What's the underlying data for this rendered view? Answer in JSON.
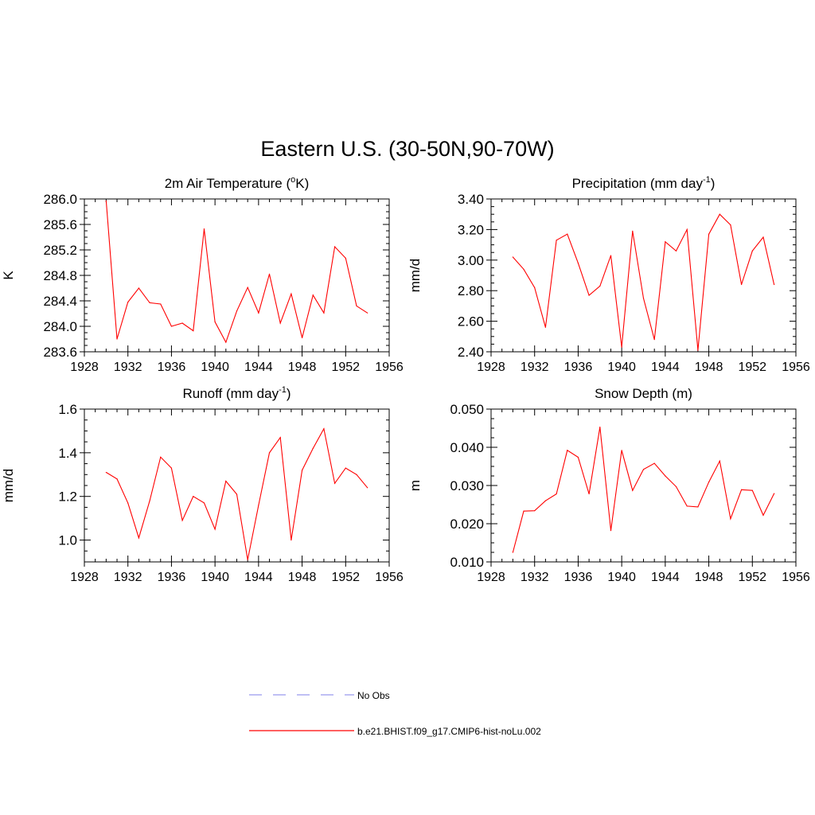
{
  "figure": {
    "title": "Eastern U.S. (30-50N,90-70W)"
  },
  "legend": {
    "entries": [
      {
        "label": "No Obs",
        "color": "#9999ee",
        "style": "dashed"
      },
      {
        "label": "b.e21.BHIST.f09_g17.CMIP6-hist-noLu.002",
        "color": "#ff0000",
        "style": "solid"
      }
    ]
  },
  "chart_data": [
    {
      "type": "line",
      "title": "2m Air Temperature (",
      "title_sup": "o",
      "title_after": "K)",
      "xlabel": "",
      "ylabel": "K",
      "xlim": [
        1928,
        1956
      ],
      "ylim": [
        283.6,
        286.0
      ],
      "xticks": [
        "1928",
        "1932",
        "1936",
        "1940",
        "1944",
        "1948",
        "1952",
        "1956"
      ],
      "yticks": [
        "283.6",
        "284.0",
        "284.4",
        "284.8",
        "285.2",
        "285.6",
        "286.0"
      ],
      "series": [
        {
          "color": "#ff0000",
          "x": [
            1930,
            1931,
            1932,
            1933,
            1934,
            1935,
            1936,
            1937,
            1938,
            1939,
            1940,
            1941,
            1942,
            1943,
            1944,
            1945,
            1946,
            1947,
            1948,
            1949,
            1950,
            1951,
            1952,
            1953,
            1954
          ],
          "values": [
            285.97,
            283.8,
            284.38,
            284.6,
            284.37,
            284.35,
            284.0,
            284.05,
            283.93,
            285.53,
            284.07,
            283.75,
            284.24,
            284.61,
            284.21,
            284.82,
            284.05,
            284.51,
            283.82,
            284.49,
            284.21,
            285.25,
            285.07,
            284.32,
            284.21
          ]
        }
      ]
    },
    {
      "type": "line",
      "title": "Precipitation (mm day",
      "title_sup": "-1",
      "title_after": ")",
      "xlabel": "",
      "ylabel": "mm/d",
      "xlim": [
        1928,
        1956
      ],
      "ylim": [
        2.4,
        3.4
      ],
      "xticks": [
        "1928",
        "1932",
        "1936",
        "1940",
        "1944",
        "1948",
        "1952",
        "1956"
      ],
      "yticks": [
        "2.40",
        "2.60",
        "2.80",
        "3.00",
        "3.20",
        "3.40"
      ],
      "series": [
        {
          "color": "#ff0000",
          "x": [
            1930,
            1931,
            1932,
            1933,
            1934,
            1935,
            1936,
            1937,
            1938,
            1939,
            1940,
            1941,
            1942,
            1943,
            1944,
            1945,
            1946,
            1947,
            1948,
            1949,
            1950,
            1951,
            1952,
            1953,
            1954
          ],
          "values": [
            3.02,
            2.94,
            2.82,
            2.56,
            3.13,
            3.17,
            2.98,
            2.77,
            2.83,
            3.03,
            2.43,
            3.19,
            2.75,
            2.48,
            3.12,
            3.06,
            3.2,
            2.41,
            3.17,
            3.3,
            3.23,
            2.84,
            3.06,
            3.15,
            2.84
          ]
        }
      ]
    },
    {
      "type": "line",
      "title": "Runoff (mm day",
      "title_sup": "-1",
      "title_after": ")",
      "xlabel": "",
      "ylabel": "mm/d",
      "xlim": [
        1928,
        1956
      ],
      "ylim": [
        0.9,
        1.6
      ],
      "xticks": [
        "1928",
        "1932",
        "1936",
        "1940",
        "1944",
        "1948",
        "1952",
        "1956"
      ],
      "yticks": [
        "1.0",
        "1.2",
        "1.4",
        "1.6"
      ],
      "yticks_at": [
        1.0,
        1.2,
        1.4,
        1.6
      ],
      "series": [
        {
          "color": "#ff0000",
          "x": [
            1930,
            1931,
            1932,
            1933,
            1934,
            1935,
            1936,
            1937,
            1938,
            1939,
            1940,
            1941,
            1942,
            1943,
            1944,
            1945,
            1946,
            1947,
            1948,
            1949,
            1950,
            1951,
            1952,
            1953,
            1954
          ],
          "values": [
            1.31,
            1.28,
            1.17,
            1.01,
            1.18,
            1.38,
            1.33,
            1.09,
            1.2,
            1.17,
            1.05,
            1.27,
            1.21,
            0.91,
            1.16,
            1.4,
            1.47,
            1.0,
            1.32,
            1.42,
            1.51,
            1.26,
            1.33,
            1.3,
            1.24
          ]
        }
      ]
    },
    {
      "type": "line",
      "title": "Snow Depth (m)",
      "title_sup": "",
      "title_after": "",
      "xlabel": "",
      "ylabel": "m",
      "xlim": [
        1928,
        1956
      ],
      "ylim": [
        0.01,
        0.05
      ],
      "xticks": [
        "1928",
        "1932",
        "1936",
        "1940",
        "1944",
        "1948",
        "1952",
        "1956"
      ],
      "yticks": [
        "0.010",
        "0.020",
        "0.030",
        "0.040",
        "0.050"
      ],
      "series": [
        {
          "color": "#ff0000",
          "x": [
            1930,
            1931,
            1932,
            1933,
            1934,
            1935,
            1936,
            1937,
            1938,
            1939,
            1940,
            1941,
            1942,
            1943,
            1944,
            1945,
            1946,
            1947,
            1948,
            1949,
            1950,
            1951,
            1952,
            1953,
            1954
          ],
          "values": [
            0.0125,
            0.0233,
            0.0234,
            0.026,
            0.0278,
            0.0392,
            0.0374,
            0.0278,
            0.0453,
            0.0182,
            0.0392,
            0.0287,
            0.0342,
            0.0358,
            0.0325,
            0.0297,
            0.0246,
            0.0244,
            0.0309,
            0.0364,
            0.0213,
            0.0289,
            0.0287,
            0.0222,
            0.0279
          ]
        }
      ]
    }
  ]
}
